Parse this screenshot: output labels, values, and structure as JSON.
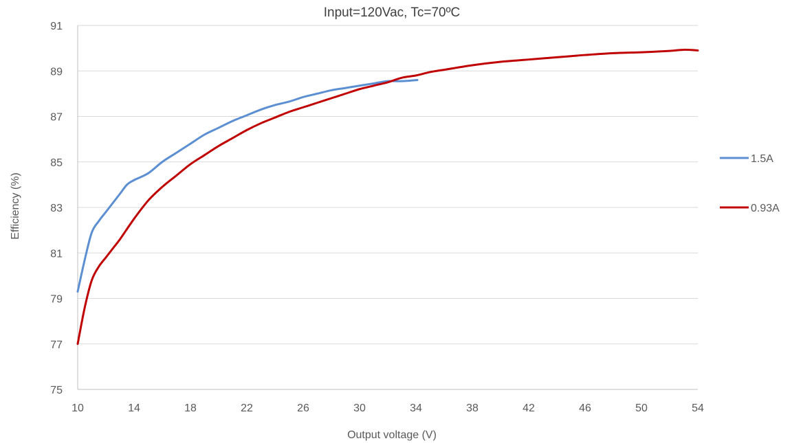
{
  "chart_data": {
    "type": "line",
    "title": "Input=120Vac, Tc=70ºC",
    "xlabel": "Output voltage (V)",
    "ylabel": "Efficiency (%)",
    "xlim": [
      10,
      54
    ],
    "ylim": [
      75,
      91
    ],
    "x_ticks": [
      10,
      14,
      18,
      22,
      26,
      30,
      34,
      38,
      42,
      46,
      50,
      54
    ],
    "y_ticks": [
      75,
      77,
      79,
      81,
      83,
      85,
      87,
      89,
      91
    ],
    "x_tick_labels": [
      "10",
      "14",
      "18",
      "22",
      "26",
      "30",
      "34",
      "38",
      "42",
      "46",
      "50",
      "54"
    ],
    "y_tick_labels": [
      "75",
      "77",
      "79",
      "81",
      "83",
      "85",
      "87",
      "89",
      "91"
    ],
    "grid": "horizontal",
    "legend_position": "right",
    "series": [
      {
        "name": "1.5A",
        "color": "#5b8fd2",
        "x": [
          10,
          10.5,
          11,
          11.5,
          12,
          12.5,
          13,
          13.5,
          14,
          15,
          16,
          17,
          18,
          19,
          20,
          21,
          22,
          23,
          24,
          25,
          26,
          27,
          28,
          29,
          30,
          31,
          32,
          33,
          34.1
        ],
        "y": [
          79.3,
          80.7,
          81.9,
          82.4,
          82.8,
          83.2,
          83.6,
          84.0,
          84.2,
          84.5,
          85.0,
          85.4,
          85.8,
          86.2,
          86.5,
          86.8,
          87.05,
          87.3,
          87.5,
          87.65,
          87.85,
          88.0,
          88.15,
          88.25,
          88.35,
          88.45,
          88.55,
          88.55,
          88.6
        ]
      },
      {
        "name": "0.93A",
        "color": "#c00000",
        "x": [
          10,
          10.5,
          11,
          11.5,
          12,
          12.5,
          13,
          14,
          15,
          16,
          17,
          18,
          19,
          20,
          21,
          22,
          23,
          24,
          25,
          26,
          27,
          28,
          29,
          30,
          31,
          32,
          33,
          34,
          35,
          36,
          38,
          40,
          42,
          44,
          45,
          46,
          48,
          50,
          52,
          53,
          54
        ],
        "y": [
          77.0,
          78.6,
          79.8,
          80.4,
          80.8,
          81.2,
          81.6,
          82.5,
          83.3,
          83.9,
          84.4,
          84.9,
          85.3,
          85.7,
          86.05,
          86.4,
          86.7,
          86.95,
          87.2,
          87.4,
          87.6,
          87.8,
          88.0,
          88.2,
          88.35,
          88.5,
          88.7,
          88.8,
          88.95,
          89.05,
          89.25,
          89.4,
          89.5,
          89.6,
          89.65,
          89.7,
          89.78,
          89.82,
          89.88,
          89.93,
          89.9
        ]
      }
    ]
  }
}
